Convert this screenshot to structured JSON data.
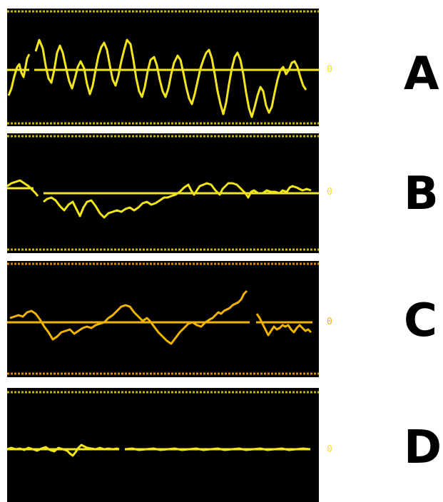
{
  "colors": {
    "background": "#ffffff",
    "panel": "#000000",
    "trace_yellow": "#f2e61a",
    "trace_amber": "#f0b400",
    "border_yellow": "#c8b400",
    "border_amber": "#d88a00",
    "letter": "#000000"
  },
  "panels": [
    {
      "letter": "A",
      "zero_label": "0",
      "color": "#f2e61a",
      "border_color": "#c8b400"
    },
    {
      "letter": "B",
      "zero_label": "0",
      "color": "#f2e61a",
      "border_color": "#c8b400"
    },
    {
      "letter": "C",
      "zero_label": "0",
      "color": "#f0b400",
      "border_color": "#d88a00"
    },
    {
      "letter": "D",
      "zero_label": "0",
      "color": "#f2e61a",
      "border_color": "#c8b400"
    }
  ]
}
